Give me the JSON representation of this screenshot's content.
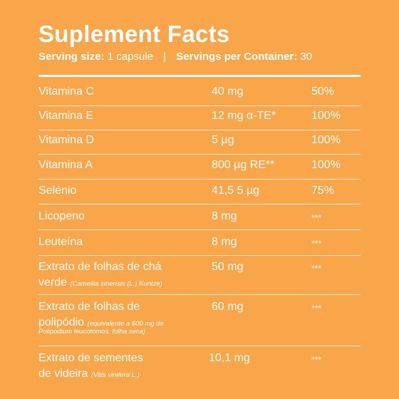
{
  "title": "Suplement Facts",
  "serving": {
    "size_label": "Serving size:",
    "size_value": "1 capsule",
    "separator": "|",
    "per_container_label": "Servings per Container:",
    "per_container_value": "30"
  },
  "rows": [
    {
      "name": "Vitamina C",
      "amount": "40 mg",
      "dv": "50%"
    },
    {
      "name": "Vitamina E",
      "amount": "12 mg α-TE*",
      "dv": "100%"
    },
    {
      "name": "Vitamina D",
      "amount": "5 µg",
      "dv": "100%"
    },
    {
      "name": "Vitamina A",
      "amount": "800 µg RE**",
      "dv": "100%"
    },
    {
      "name": "Selénio",
      "amount": "41,5 5 µg",
      "dv": "75%"
    },
    {
      "name": "Licopeno",
      "amount": "8 mg",
      "dv": "***"
    },
    {
      "name": "Leuteína",
      "amount": "8 mg",
      "dv": "***"
    },
    {
      "name_line1": "Extrato de folhas de chá",
      "name_line2": "verde",
      "note": "(Camellia sinensis (L.) Kuntze)",
      "amount": "50 mg",
      "dv": "***"
    },
    {
      "name_line1": "Extrato de folhas de",
      "name_line2": "polipódio",
      "note": "(equivalente a 600 mg de",
      "note2": "Polipodium leucotomos, folha seca)",
      "amount": "60 mg",
      "dv": "***"
    },
    {
      "name_line1": "Extrato de sementes",
      "name_line2": "de videira",
      "note": "(Vitis vinifera L.)",
      "amount": "10,1 mg",
      "dv": "***"
    }
  ]
}
